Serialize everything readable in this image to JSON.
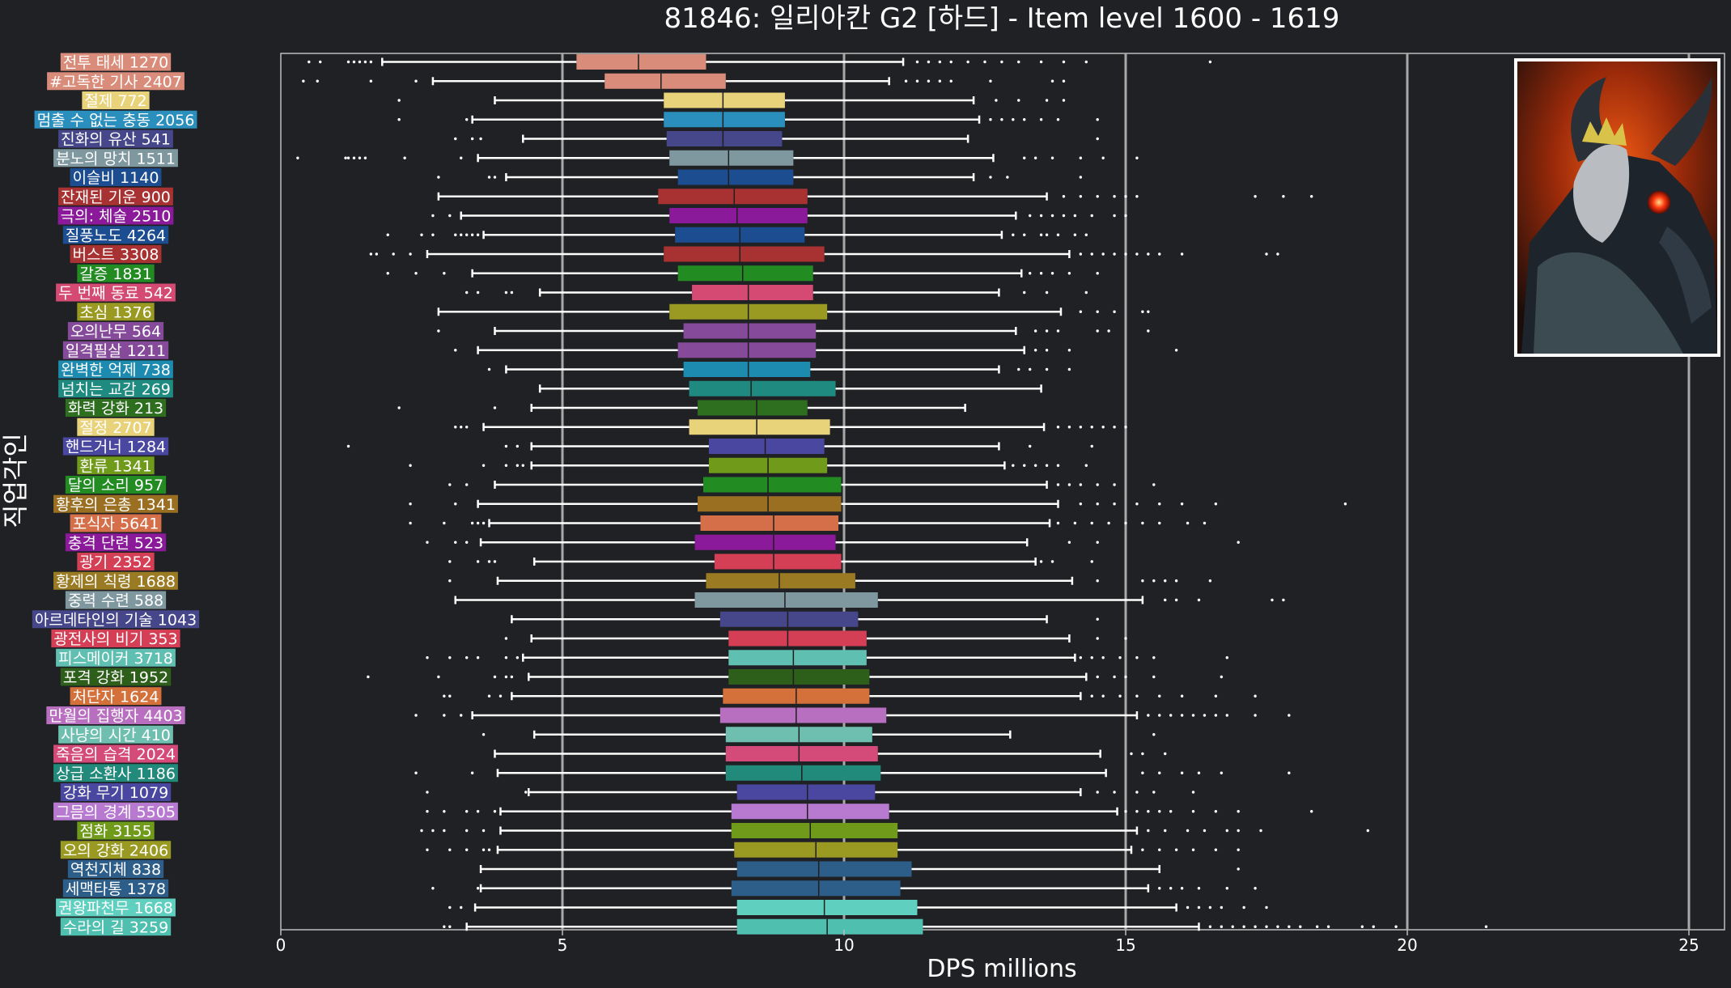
{
  "chart_data": {
    "type": "boxplot",
    "orientation": "horizontal",
    "title": "81846: 일리아칸 G2 [하드] - Item level 1600 - 1619",
    "xlabel": "DPS millions",
    "ylabel": "직업각인",
    "xlim": [
      0,
      25.6
    ],
    "xticks": [
      0,
      5,
      10,
      15,
      20,
      25
    ],
    "grid": "vertical gridlines at major ticks",
    "background_color": "#202124",
    "inset_image": "demon-portrait-image",
    "categories": [
      {
        "label": "전투 태세 1270",
        "color": "#d98c7a",
        "wmin": 1.8,
        "q1": 5.25,
        "med": 6.35,
        "q3": 7.55,
        "wmax": 11.05,
        "outliers": [
          0.5,
          0.7,
          1.2,
          1.3,
          1.4,
          1.5,
          1.6,
          11.3,
          11.5,
          11.7,
          11.9,
          12.2,
          12.5,
          12.8,
          13.1,
          13.5,
          13.9,
          14.3,
          16.5
        ]
      },
      {
        "label": "#고독한 기사 2407",
        "color": "#d98c7a",
        "wmin": 2.7,
        "q1": 5.75,
        "med": 6.75,
        "q3": 7.9,
        "wmax": 10.8,
        "outliers": [
          0.4,
          0.65,
          1.6,
          2.4,
          11.1,
          11.3,
          11.5,
          11.7,
          11.9,
          12.6,
          13.7,
          13.9
        ]
      },
      {
        "label": "절제 772",
        "color": "#e8d27a",
        "wmin": 3.8,
        "q1": 6.8,
        "med": 7.85,
        "q3": 8.95,
        "wmax": 12.3,
        "outliers": [
          2.1,
          12.7,
          13.1,
          13.6,
          13.9
        ]
      },
      {
        "label": "멈출 수 없는 충동 2056",
        "color": "#2a8fbd",
        "wmin": 3.4,
        "q1": 6.8,
        "med": 7.85,
        "q3": 8.95,
        "wmax": 12.4,
        "outliers": [
          2.1,
          3.3,
          12.6,
          12.8,
          13.0,
          13.2,
          13.5,
          13.8,
          14.5
        ]
      },
      {
        "label": "진화의 유산 541",
        "color": "#46468a",
        "wmin": 4.3,
        "q1": 6.85,
        "med": 7.85,
        "q3": 8.9,
        "wmax": 12.2,
        "outliers": [
          3.1,
          3.4,
          3.55,
          14.5
        ]
      },
      {
        "label": "분노의 망치 1511",
        "color": "#7f98a0",
        "wmin": 3.5,
        "q1": 6.9,
        "med": 7.95,
        "q3": 9.1,
        "wmax": 12.65,
        "outliers": [
          0.3,
          1.15,
          1.2,
          1.3,
          1.4,
          1.5,
          2.2,
          3.2,
          13.2,
          13.4,
          13.7,
          14.2,
          14.6,
          15.2
        ]
      },
      {
        "label": "이슬비 1140",
        "color": "#1d4d91",
        "wmin": 4.0,
        "q1": 7.05,
        "med": 7.95,
        "q3": 9.1,
        "wmax": 12.3,
        "outliers": [
          2.8,
          3.7,
          3.8,
          12.6,
          12.9,
          14.2
        ]
      },
      {
        "label": "잔재된 기운 900",
        "color": "#a83232",
        "wmin": 2.8,
        "q1": 6.7,
        "med": 8.05,
        "q3": 9.35,
        "wmax": 13.6,
        "outliers": [
          13.9,
          14.2,
          14.5,
          14.8,
          15.0,
          15.2,
          17.3,
          17.8,
          18.3
        ]
      },
      {
        "label": "극의: 체술 2510",
        "color": "#8a1a9a",
        "wmin": 3.2,
        "q1": 6.9,
        "med": 8.1,
        "q3": 9.35,
        "wmax": 13.05,
        "outliers": [
          2.7,
          3.0,
          13.3,
          13.5,
          13.7,
          13.9,
          14.1,
          14.4,
          14.8,
          15.0
        ]
      },
      {
        "label": "질풍노도 4264",
        "color": "#1d4d91",
        "wmin": 3.6,
        "q1": 7.0,
        "med": 8.15,
        "q3": 9.3,
        "wmax": 12.8,
        "outliers": [
          1.9,
          2.5,
          2.7,
          3.1,
          3.2,
          3.3,
          3.4,
          3.5,
          13.0,
          13.2,
          13.5,
          13.6,
          13.8,
          14.1,
          14.3
        ]
      },
      {
        "label": "버스트 3308",
        "color": "#a83232",
        "wmin": 2.6,
        "q1": 6.8,
        "med": 8.15,
        "q3": 9.65,
        "wmax": 14.0,
        "outliers": [
          1.6,
          1.7,
          2.0,
          2.3,
          14.2,
          14.4,
          14.6,
          14.8,
          15.0,
          15.2,
          15.4,
          15.6,
          16.0,
          17.5,
          17.7
        ]
      },
      {
        "label": "갈증 1831",
        "color": "#228b22",
        "wmin": 3.4,
        "q1": 7.05,
        "med": 8.2,
        "q3": 9.45,
        "wmax": 13.15,
        "outliers": [
          1.9,
          2.4,
          2.9,
          13.3,
          13.5,
          13.7,
          14.0,
          14.5
        ]
      },
      {
        "label": "두 번째 동료 542",
        "color": "#d44a72",
        "wmin": 4.6,
        "q1": 7.3,
        "med": 8.3,
        "q3": 9.45,
        "wmax": 12.75,
        "outliers": [
          3.3,
          3.5,
          4.0,
          4.1,
          13.2,
          13.6,
          14.3
        ]
      },
      {
        "label": "초심 1376",
        "color": "#9a9a22",
        "wmin": 2.8,
        "q1": 6.9,
        "med": 8.3,
        "q3": 9.7,
        "wmax": 13.85,
        "outliers": [
          14.2,
          14.5,
          14.8,
          15.3,
          15.4
        ]
      },
      {
        "label": "오의난무 564",
        "color": "#864a9a",
        "wmin": 3.8,
        "q1": 7.15,
        "med": 8.3,
        "q3": 9.5,
        "wmax": 13.05,
        "outliers": [
          2.8,
          13.4,
          13.6,
          13.8,
          14.5,
          14.7,
          15.4
        ]
      },
      {
        "label": "일격필살 1211",
        "color": "#864a9a",
        "wmin": 3.5,
        "q1": 7.05,
        "med": 8.3,
        "q3": 9.5,
        "wmax": 13.2,
        "outliers": [
          3.1,
          13.4,
          13.6,
          14.0,
          15.9
        ]
      },
      {
        "label": "완벽한 억제 738",
        "color": "#1d8bb0",
        "wmin": 4.0,
        "q1": 7.15,
        "med": 8.3,
        "q3": 9.4,
        "wmax": 12.75,
        "outliers": [
          3.7,
          13.1,
          13.3,
          13.6,
          14.0
        ]
      },
      {
        "label": "넘치는 교감 269",
        "color": "#1f8a80",
        "wmin": 4.6,
        "q1": 7.25,
        "med": 8.35,
        "q3": 9.85,
        "wmax": 13.5,
        "outliers": []
      },
      {
        "label": "화력 강화 213",
        "color": "#2d6e1f",
        "wmin": 4.45,
        "q1": 7.4,
        "med": 8.45,
        "q3": 9.35,
        "wmax": 12.15,
        "outliers": [
          2.1,
          3.8
        ]
      },
      {
        "label": "절정 2707",
        "color": "#e8d27a",
        "wmin": 3.6,
        "q1": 7.25,
        "med": 8.45,
        "q3": 9.75,
        "wmax": 13.55,
        "outliers": [
          3.1,
          3.2,
          3.3,
          13.8,
          14.0,
          14.2,
          14.4,
          14.6,
          14.8,
          15.0
        ]
      },
      {
        "label": "핸드거너 1284",
        "color": "#4a47a0",
        "wmin": 4.45,
        "q1": 7.6,
        "med": 8.6,
        "q3": 9.65,
        "wmax": 12.75,
        "outliers": [
          1.2,
          4.0,
          4.2,
          13.3,
          14.4
        ]
      },
      {
        "label": "환류 1341",
        "color": "#6f9a1a",
        "wmin": 4.45,
        "q1": 7.6,
        "med": 8.65,
        "q3": 9.7,
        "wmax": 12.85,
        "outliers": [
          2.3,
          3.6,
          4.0,
          4.2,
          4.3,
          13.0,
          13.2,
          13.4,
          13.6,
          13.8,
          14.3
        ]
      },
      {
        "label": "달의 소리 957",
        "color": "#228b22",
        "wmin": 3.8,
        "q1": 7.5,
        "med": 8.65,
        "q3": 9.95,
        "wmax": 13.6,
        "outliers": [
          3.0,
          3.3,
          13.8,
          14.0,
          14.2,
          14.5,
          14.8,
          15.5
        ]
      },
      {
        "label": "황후의 은총 1341",
        "color": "#9a6f22",
        "wmin": 3.5,
        "q1": 7.4,
        "med": 8.65,
        "q3": 9.95,
        "wmax": 13.8,
        "outliers": [
          2.3,
          3.1,
          14.2,
          14.5,
          14.8,
          15.2,
          15.6,
          16.0,
          16.6,
          18.9
        ]
      },
      {
        "label": "포식자 5641",
        "color": "#d46f4a",
        "wmin": 3.7,
        "q1": 7.45,
        "med": 8.75,
        "q3": 9.9,
        "wmax": 13.65,
        "outliers": [
          2.3,
          2.9,
          3.4,
          3.5,
          3.6,
          13.8,
          14.1,
          14.4,
          14.7,
          15.0,
          15.3,
          15.6,
          16.1,
          16.4
        ]
      },
      {
        "label": "충격 단련 523",
        "color": "#8a1a9a",
        "wmin": 3.55,
        "q1": 7.35,
        "med": 8.75,
        "q3": 9.85,
        "wmax": 13.25,
        "outliers": [
          2.6,
          3.1,
          3.3,
          14.0,
          14.5,
          17.0
        ]
      },
      {
        "label": "광기 2352",
        "color": "#d43f56",
        "wmin": 4.5,
        "q1": 7.7,
        "med": 8.75,
        "q3": 9.95,
        "wmax": 13.4,
        "outliers": [
          3.0,
          3.5,
          3.7,
          3.8,
          13.5,
          13.7,
          14.4
        ]
      },
      {
        "label": "황제의 칙령 1688",
        "color": "#9a7a22",
        "wmin": 3.85,
        "q1": 7.55,
        "med": 8.85,
        "q3": 10.2,
        "wmax": 14.05,
        "outliers": [
          3.0,
          14.5,
          15.3,
          15.5,
          15.7,
          15.9,
          16.5
        ]
      },
      {
        "label": "중력 수련 588",
        "color": "#7f98a0",
        "wmin": 3.1,
        "q1": 7.35,
        "med": 8.95,
        "q3": 10.6,
        "wmax": 15.3,
        "outliers": [
          15.7,
          15.9,
          16.3,
          17.6,
          17.8
        ]
      },
      {
        "label": "아르데타인의 기술 1043",
        "color": "#46468a",
        "wmin": 4.1,
        "q1": 7.8,
        "med": 9.0,
        "q3": 10.25,
        "wmax": 13.6,
        "outliers": [
          14.5
        ]
      },
      {
        "label": "광전사의 비기 353",
        "color": "#d43f56",
        "wmin": 4.45,
        "q1": 7.95,
        "med": 9.0,
        "q3": 10.4,
        "wmax": 14.0,
        "outliers": [
          4.0,
          14.5,
          15.0
        ]
      },
      {
        "label": "피스메이커 3718",
        "color": "#5fbfb0",
        "wmin": 4.3,
        "q1": 7.95,
        "med": 9.1,
        "q3": 10.4,
        "wmax": 14.1,
        "outliers": [
          2.6,
          3.0,
          3.3,
          3.5,
          4.0,
          4.2,
          14.2,
          14.4,
          14.6,
          14.9,
          15.2,
          15.5,
          16.8
        ]
      },
      {
        "label": "포격 강화 1952",
        "color": "#2d5e1a",
        "wmin": 4.4,
        "q1": 7.95,
        "med": 9.1,
        "q3": 10.45,
        "wmax": 14.3,
        "outliers": [
          1.55,
          2.8,
          3.8,
          4.0,
          4.1,
          14.5,
          14.8,
          15.0,
          15.5,
          16.7
        ]
      },
      {
        "label": "처단자 1624",
        "color": "#d4703a",
        "wmin": 4.1,
        "q1": 7.85,
        "med": 9.15,
        "q3": 10.45,
        "wmax": 14.2,
        "outliers": [
          2.9,
          3.0,
          3.7,
          3.9,
          14.4,
          14.6,
          14.9,
          15.2,
          15.6,
          16.0,
          16.6,
          17.3
        ]
      },
      {
        "label": "만월의 집행자 4403",
        "color": "#b86fc0",
        "wmin": 3.4,
        "q1": 7.8,
        "med": 9.15,
        "q3": 10.75,
        "wmax": 15.2,
        "outliers": [
          2.4,
          2.9,
          3.2,
          15.4,
          15.6,
          15.8,
          16.0,
          16.2,
          16.4,
          16.6,
          16.8,
          17.3,
          17.9
        ]
      },
      {
        "label": "사냥의 시간 410",
        "color": "#6fbfb0",
        "wmin": 4.5,
        "q1": 7.9,
        "med": 9.2,
        "q3": 10.5,
        "wmax": 12.95,
        "outliers": [
          3.6,
          15.5
        ]
      },
      {
        "label": "죽음의 습격 2024",
        "color": "#d44a78",
        "wmin": 3.8,
        "q1": 7.9,
        "med": 9.2,
        "q3": 10.6,
        "wmax": 14.55,
        "outliers": [
          15.1,
          15.3,
          15.7
        ]
      },
      {
        "label": "상급 소환사 1186",
        "color": "#228a7a",
        "wmin": 3.85,
        "q1": 7.9,
        "med": 9.25,
        "q3": 10.65,
        "wmax": 14.65,
        "outliers": [
          2.4,
          3.4,
          15.3,
          15.6,
          16.0,
          16.3,
          16.7,
          17.9
        ]
      },
      {
        "label": "강화 무기 1079",
        "color": "#4a47a0",
        "wmin": 4.4,
        "q1": 8.1,
        "med": 9.35,
        "q3": 10.55,
        "wmax": 14.2,
        "outliers": [
          2.6,
          4.35,
          14.5,
          14.8,
          15.2,
          15.5,
          16.2
        ]
      },
      {
        "label": "그믐의 경계 5505",
        "color": "#b87ad0",
        "wmin": 3.9,
        "q1": 8.0,
        "med": 9.35,
        "q3": 10.8,
        "wmax": 14.85,
        "outliers": [
          2.6,
          2.9,
          3.3,
          3.5,
          3.8,
          15.0,
          15.2,
          15.4,
          15.6,
          15.8,
          16.2,
          16.6,
          17.0,
          18.3
        ]
      },
      {
        "label": "점화 3155",
        "color": "#6f9a1a",
        "wmin": 3.9,
        "q1": 8.0,
        "med": 9.4,
        "q3": 10.95,
        "wmax": 15.2,
        "outliers": [
          2.5,
          2.7,
          2.9,
          3.3,
          3.6,
          15.4,
          15.7,
          16.1,
          16.4,
          16.8,
          17.0,
          17.4,
          19.3
        ]
      },
      {
        "label": "오의 강화 2406",
        "color": "#9a9a22",
        "wmin": 3.85,
        "q1": 8.05,
        "med": 9.5,
        "q3": 10.95,
        "wmax": 15.1,
        "outliers": [
          2.6,
          3.0,
          3.3,
          3.6,
          3.7,
          15.3,
          15.6,
          15.9,
          16.2,
          16.6,
          17.0
        ]
      },
      {
        "label": "역천지체 838",
        "color": "#2d5e8a",
        "wmin": 3.55,
        "q1": 8.1,
        "med": 9.55,
        "q3": 11.2,
        "wmax": 15.6,
        "outliers": [
          17.0
        ]
      },
      {
        "label": "세맥타통 1378",
        "color": "#2d5e8a",
        "wmin": 3.55,
        "q1": 8.0,
        "med": 9.55,
        "q3": 11.0,
        "wmax": 15.4,
        "outliers": [
          2.7,
          3.5,
          15.6,
          15.8,
          16.0,
          16.3,
          16.8,
          17.3
        ]
      },
      {
        "label": "권왕파천무 1668",
        "color": "#5fd0c0",
        "wmin": 3.45,
        "q1": 8.1,
        "med": 9.65,
        "q3": 11.3,
        "wmax": 15.9,
        "outliers": [
          3.0,
          3.2,
          16.1,
          16.3,
          16.5,
          16.7,
          17.1,
          17.5
        ]
      },
      {
        "label": "수라의 길 3259",
        "color": "#4fbfb0",
        "wmin": 3.3,
        "q1": 8.1,
        "med": 9.7,
        "q3": 11.4,
        "wmax": 16.3,
        "outliers": [
          2.9,
          3.0,
          16.5,
          16.7,
          16.9,
          17.1,
          17.3,
          17.5,
          17.7,
          17.9,
          18.1,
          18.4,
          18.6,
          19.2,
          19.4,
          19.8,
          21.4
        ]
      }
    ]
  }
}
